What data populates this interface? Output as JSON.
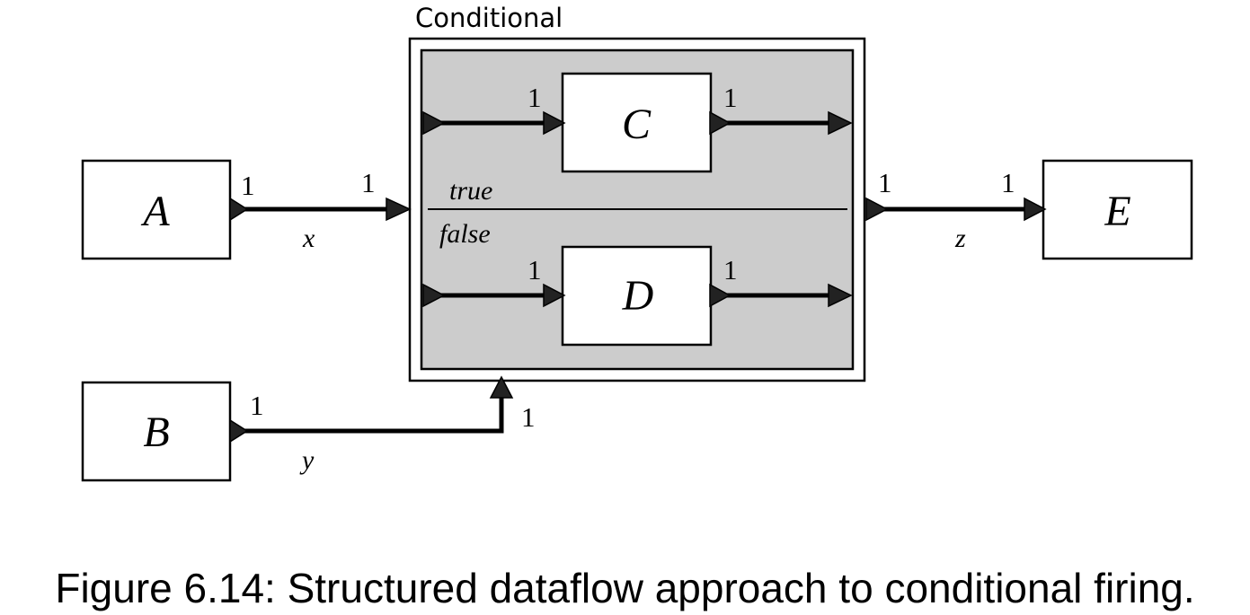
{
  "conditional": {
    "title": "Conditional",
    "true_label": "true",
    "false_label": "false"
  },
  "actors": {
    "a": "A",
    "b": "B",
    "c": "C",
    "d": "D",
    "e": "E"
  },
  "arcs": {
    "x": "x",
    "y": "y",
    "z": "z"
  },
  "rates": {
    "a_out": "1",
    "x_in": "1",
    "b_out": "1",
    "y_in": "1",
    "c_in": "1",
    "c_out": "1",
    "d_in": "1",
    "d_out": "1",
    "z_out": "1",
    "e_in": "1"
  },
  "caption": "Figure 6.14: Structured dataflow approach to conditional firing."
}
